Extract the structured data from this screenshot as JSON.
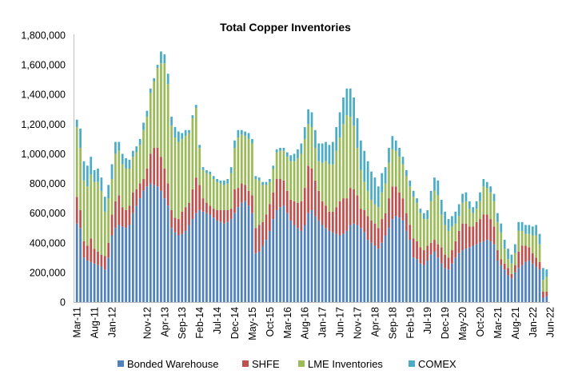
{
  "chart_data": {
    "type": "bar",
    "stacked": true,
    "title": "Total Copper Inventories",
    "xlabel": "",
    "ylabel": "",
    "ylim": [
      0,
      1800000
    ],
    "yticks": [
      0,
      200000,
      400000,
      600000,
      800000,
      1000000,
      1200000,
      1400000,
      1600000,
      1800000
    ],
    "ytick_labels": [
      "0",
      "200,000",
      "400,000",
      "600,000",
      "800,000",
      "1,000,000",
      "1,200,000",
      "1,400,000",
      "1,600,000",
      "1,800,000"
    ],
    "start_month": "Mar-11",
    "xtick_labels": [
      "Mar-11",
      "Aug-11",
      "Jan-12",
      "Nov-12",
      "Apr-13",
      "Sep-13",
      "Feb-14",
      "Jul-14",
      "Dec-14",
      "May-15",
      "Oct-15",
      "Mar-16",
      "Aug-16",
      "Jan-17",
      "Jun-17",
      "Nov-17",
      "Apr-18",
      "Sep-18",
      "Feb-19",
      "Jul-19",
      "Dec-19",
      "May-20",
      "Oct-20",
      "Mar-21",
      "Aug-21",
      "Jan-22",
      "Jun-22"
    ],
    "legend_position": "bottom",
    "series": [
      {
        "name": "Bonded Warehouse",
        "color": "#4f81bd",
        "values": [
          530000,
          500000,
          300000,
          280000,
          270000,
          260000,
          250000,
          240000,
          220000,
          300000,
          450000,
          500000,
          520000,
          510000,
          500000,
          520000,
          600000,
          650000,
          700000,
          750000,
          780000,
          800000,
          790000,
          780000,
          750000,
          700000,
          650000,
          500000,
          470000,
          450000,
          460000,
          480000,
          520000,
          560000,
          600000,
          620000,
          610000,
          600000,
          590000,
          570000,
          550000,
          540000,
          530000,
          540000,
          560000,
          600000,
          640000,
          670000,
          680000,
          650000,
          600000,
          330000,
          340000,
          380000,
          420000,
          480000,
          560000,
          620000,
          640000,
          650000,
          600000,
          550000,
          520000,
          500000,
          480000,
          520000,
          600000,
          620000,
          580000,
          550000,
          520000,
          500000,
          480000,
          470000,
          460000,
          450000,
          460000,
          480000,
          520000,
          530000,
          520000,
          500000,
          470000,
          420000,
          400000,
          380000,
          360000,
          400000,
          450000,
          500000,
          560000,
          580000,
          570000,
          550000,
          480000,
          420000,
          300000,
          290000,
          260000,
          250000,
          280000,
          320000,
          340000,
          300000,
          260000,
          230000,
          220000,
          260000,
          300000,
          330000,
          350000,
          360000,
          370000,
          380000,
          390000,
          400000,
          410000,
          420000,
          410000,
          390000,
          280000,
          250000,
          220000,
          180000,
          160000,
          200000,
          230000,
          250000,
          270000,
          280000,
          260000,
          240000,
          220000,
          30000,
          40000
        ]
      },
      {
        "name": "SHFE",
        "color": "#c0504d",
        "values": [
          180000,
          120000,
          110000,
          100000,
          160000,
          100000,
          90000,
          80000,
          90000,
          100000,
          140000,
          180000,
          200000,
          130000,
          120000,
          130000,
          140000,
          110000,
          100000,
          80000,
          120000,
          200000,
          250000,
          260000,
          230000,
          200000,
          150000,
          120000,
          100000,
          110000,
          150000,
          160000,
          150000,
          200000,
          240000,
          170000,
          90000,
          70000,
          60000,
          60000,
          70000,
          80000,
          90000,
          80000,
          70000,
          160000,
          130000,
          130000,
          110000,
          100000,
          120000,
          170000,
          180000,
          160000,
          170000,
          180000,
          180000,
          210000,
          190000,
          170000,
          150000,
          140000,
          160000,
          170000,
          200000,
          250000,
          320000,
          280000,
          240000,
          200000,
          160000,
          150000,
          130000,
          140000,
          180000,
          230000,
          240000,
          220000,
          250000,
          230000,
          200000,
          130000,
          150000,
          160000,
          150000,
          150000,
          140000,
          160000,
          150000,
          200000,
          220000,
          200000,
          170000,
          150000,
          120000,
          100000,
          130000,
          120000,
          110000,
          100000,
          100000,
          80000,
          80000,
          90000,
          110000,
          90000,
          80000,
          90000,
          110000,
          150000,
          180000,
          170000,
          140000,
          130000,
          150000,
          160000,
          180000,
          170000,
          150000,
          120000,
          70000,
          40000,
          40000,
          50000,
          30000,
          50000,
          110000,
          130000,
          110000,
          90000,
          70000,
          60000,
          50000,
          40000,
          30000
        ]
      },
      {
        "name": "LME Inventories",
        "color": "#9bbb59",
        "values": [
          470000,
          420000,
          410000,
          400000,
          430000,
          450000,
          470000,
          430000,
          300000,
          300000,
          240000,
          320000,
          300000,
          290000,
          280000,
          250000,
          240000,
          250000,
          260000,
          330000,
          350000,
          410000,
          450000,
          540000,
          630000,
          710000,
          670000,
          570000,
          540000,
          520000,
          490000,
          480000,
          470000,
          480000,
          470000,
          250000,
          190000,
          200000,
          210000,
          200000,
          190000,
          180000,
          170000,
          180000,
          240000,
          280000,
          340000,
          330000,
          330000,
          350000,
          350000,
          330000,
          300000,
          250000,
          200000,
          150000,
          160000,
          180000,
          190000,
          200000,
          230000,
          260000,
          270000,
          300000,
          320000,
          330000,
          280000,
          280000,
          220000,
          200000,
          260000,
          300000,
          320000,
          320000,
          380000,
          430000,
          500000,
          560000,
          480000,
          430000,
          320000,
          260000,
          190000,
          170000,
          140000,
          130000,
          140000,
          180000,
          200000,
          240000,
          250000,
          240000,
          240000,
          230000,
          250000,
          260000,
          280000,
          260000,
          230000,
          210000,
          180000,
          280000,
          330000,
          330000,
          220000,
          200000,
          180000,
          160000,
          120000,
          100000,
          140000,
          150000,
          120000,
          90000,
          90000,
          120000,
          190000,
          180000,
          180000,
          170000,
          190000,
          180000,
          100000,
          60000,
          70000,
          80000,
          140000,
          100000,
          80000,
          90000,
          120000,
          150000,
          120000,
          80000,
          100000
        ]
      },
      {
        "name": "COMEX",
        "color": "#4bacc6",
        "values": [
          50000,
          130000,
          130000,
          140000,
          120000,
          80000,
          90000,
          90000,
          100000,
          90000,
          100000,
          80000,
          60000,
          70000,
          70000,
          60000,
          40000,
          40000,
          40000,
          50000,
          40000,
          30000,
          20000,
          20000,
          80000,
          60000,
          70000,
          60000,
          70000,
          70000,
          40000,
          40000,
          20000,
          20000,
          20000,
          20000,
          20000,
          20000,
          20000,
          20000,
          20000,
          20000,
          30000,
          30000,
          40000,
          50000,
          50000,
          30000,
          30000,
          40000,
          30000,
          20000,
          20000,
          20000,
          20000,
          20000,
          20000,
          20000,
          20000,
          20000,
          30000,
          40000,
          50000,
          60000,
          70000,
          80000,
          100000,
          100000,
          120000,
          120000,
          130000,
          130000,
          130000,
          150000,
          160000,
          170000,
          180000,
          180000,
          190000,
          190000,
          200000,
          200000,
          210000,
          200000,
          190000,
          180000,
          140000,
          130000,
          110000,
          100000,
          90000,
          70000,
          60000,
          50000,
          40000,
          40000,
          40000,
          30000,
          30000,
          40000,
          60000,
          70000,
          90000,
          100000,
          100000,
          90000,
          80000,
          70000,
          80000,
          80000,
          60000,
          60000,
          50000,
          40000,
          50000,
          60000,
          50000,
          40000,
          40000,
          50000,
          60000,
          60000,
          60000,
          70000,
          60000,
          60000,
          60000,
          60000,
          60000,
          60000,
          60000,
          70000,
          70000,
          80000,
          50000
        ]
      }
    ]
  }
}
